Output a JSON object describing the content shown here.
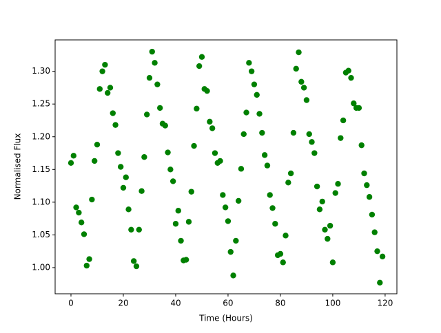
{
  "chart_data": {
    "type": "scatter",
    "xlabel": "Time (Hours)",
    "ylabel": "Normalised Flux",
    "color": "#008000",
    "x": [
      0,
      1,
      2,
      3,
      4,
      5,
      6,
      7,
      8,
      9,
      10,
      11,
      12,
      13,
      14,
      15,
      16,
      17,
      18,
      19,
      20,
      21,
      22,
      23,
      24,
      25,
      26,
      27,
      28,
      29,
      30,
      31,
      32,
      33,
      34,
      35,
      36,
      37,
      38,
      39,
      40,
      41,
      42,
      43,
      44,
      45,
      46,
      47,
      48,
      49,
      50,
      51,
      52,
      53,
      54,
      55,
      56,
      57,
      58,
      59,
      60,
      61,
      62,
      63,
      64,
      65,
      66,
      67,
      68,
      69,
      70,
      71,
      72,
      73,
      74,
      75,
      76,
      77,
      78,
      79,
      80,
      81,
      82,
      83,
      84,
      85,
      86,
      87,
      88,
      89,
      90,
      91,
      92,
      93,
      94,
      95,
      96,
      97,
      98,
      99,
      100,
      101,
      102,
      103,
      104,
      105,
      106,
      107,
      108,
      109,
      110,
      111,
      112,
      113,
      114,
      115,
      116,
      117,
      118,
      119
    ],
    "values": [
      1.16,
      1.171,
      1.092,
      1.084,
      1.069,
      1.051,
      1.003,
      1.013,
      1.104,
      1.163,
      1.188,
      1.273,
      1.3,
      1.31,
      1.267,
      1.275,
      1.236,
      1.218,
      1.175,
      1.154,
      1.122,
      1.138,
      1.089,
      1.058,
      1.01,
      1.002,
      1.058,
      1.117,
      1.169,
      1.234,
      1.29,
      1.33,
      1.313,
      1.28,
      1.244,
      1.22,
      1.217,
      1.176,
      1.15,
      1.132,
      1.067,
      1.087,
      1.041,
      1.011,
      1.012,
      1.07,
      1.116,
      1.186,
      1.243,
      1.308,
      1.322,
      1.273,
      1.27,
      1.223,
      1.213,
      1.175,
      1.16,
      1.163,
      1.111,
      1.092,
      1.071,
      1.024,
      0.988,
      1.041,
      1.102,
      1.151,
      1.204,
      1.237,
      1.313,
      1.3,
      1.28,
      1.264,
      1.235,
      1.206,
      1.172,
      1.156,
      1.111,
      1.091,
      1.067,
      1.019,
      1.021,
      1.008,
      1.049,
      1.13,
      1.144,
      1.206,
      1.304,
      1.329,
      1.284,
      1.275,
      1.256,
      1.204,
      1.192,
      1.175,
      1.124,
      1.089,
      1.101,
      1.058,
      1.044,
      1.064,
      1.008,
      1.114,
      1.128,
      1.198,
      1.225,
      1.298,
      1.301,
      1.29,
      1.251,
      1.244,
      1.244,
      1.187,
      1.144,
      1.126,
      1.108,
      1.081,
      1.054,
      1.025,
      0.977,
      1.017
    ],
    "xlim": [
      -6.05,
      124.5
    ],
    "ylim": [
      0.96,
      1.348
    ],
    "xticks": [
      0,
      20,
      40,
      60,
      80,
      100,
      120
    ],
    "yticks": [
      {
        "value": 1.0,
        "label": "1.00"
      },
      {
        "value": 1.05,
        "label": "1.05"
      },
      {
        "value": 1.1,
        "label": "1.10"
      },
      {
        "value": 1.15,
        "label": "1.15"
      },
      {
        "value": 1.2,
        "label": "1.20"
      },
      {
        "value": 1.25,
        "label": "1.25"
      },
      {
        "value": 1.3,
        "label": "1.30"
      }
    ]
  }
}
